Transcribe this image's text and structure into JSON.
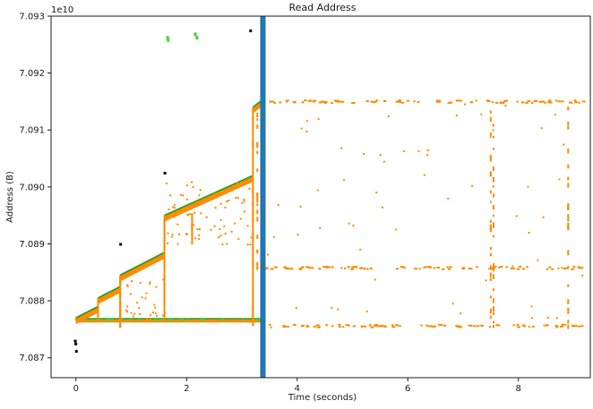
{
  "chart_data": {
    "type": "scatter",
    "title": "Read Address",
    "xlabel": "Time (seconds)",
    "ylabel": "Address (B)",
    "offset_label": "1e10",
    "xlim": [
      -0.45,
      9.3
    ],
    "ylim": [
      7.08665,
      7.093
    ],
    "x_ticks": [
      0,
      2,
      4,
      6,
      8
    ],
    "x_tick_labels": [
      "0",
      "2",
      "4",
      "6",
      "8"
    ],
    "y_ticks": [
      7.087,
      7.088,
      7.089,
      7.09,
      7.091,
      7.092,
      7.093
    ],
    "y_tick_labels": [
      "7.087",
      "7.088",
      "7.089",
      "7.090",
      "7.091",
      "7.092",
      "7.093"
    ],
    "grid": false,
    "colors": {
      "orange": "#ff8c00",
      "green": "#2ca02c",
      "bright_green": "#3ed43e",
      "black": "#000000",
      "marker_line": "#1f77b4"
    },
    "vertical_marker_x": 3.38,
    "stair_segments": [
      {
        "x0": 0.0,
        "x1": 0.4,
        "y0": 7.0877,
        "y1": 7.0879
      },
      {
        "x0": 0.4,
        "x1": 0.8,
        "y0": 7.08805,
        "y1": 7.08825
      },
      {
        "x0": 0.8,
        "x1": 1.6,
        "y0": 7.08845,
        "y1": 7.08885
      },
      {
        "x0": 1.6,
        "x1": 3.2,
        "y0": 7.0895,
        "y1": 7.0902
      },
      {
        "x0": 3.2,
        "x1": 3.4,
        "y0": 7.0914,
        "y1": 7.09155
      }
    ],
    "baseline_band": {
      "x0": 0.0,
      "x1": 3.4,
      "y": 7.08765
    },
    "horizontal_bands": [
      {
        "x0": 3.4,
        "x1": 9.2,
        "y": 7.09152
      },
      {
        "x0": 3.4,
        "x1": 9.2,
        "y": 7.0886
      },
      {
        "x0": 3.4,
        "x1": 9.2,
        "y": 7.08758
      }
    ],
    "vertical_bands": [
      {
        "x": 7.5,
        "y0": 7.08755,
        "y1": 7.09152
      },
      {
        "x": 7.55,
        "y0": 7.08755,
        "y1": 7.09152
      },
      {
        "x": 8.9,
        "y0": 7.08755,
        "y1": 7.09152
      },
      {
        "x": 0.8,
        "y0": 7.08755,
        "y1": 7.08845
      },
      {
        "x": 1.6,
        "y0": 7.08755,
        "y1": 7.0895
      },
      {
        "x": 2.1,
        "y0": 7.08905,
        "y1": 7.0896
      },
      {
        "x": 3.2,
        "y0": 7.08755,
        "y1": 7.0914
      },
      {
        "x": 3.28,
        "y0": 7.0886,
        "y1": 7.0914
      }
    ],
    "green_outliers": [
      {
        "x": 1.65,
        "y": 7.09262
      },
      {
        "x": 1.66,
        "y": 7.09258
      },
      {
        "x": 2.15,
        "y": 7.09268
      },
      {
        "x": 2.18,
        "y": 7.09262
      }
    ],
    "black_outliers": [
      {
        "x": -0.02,
        "y": 7.0873
      },
      {
        "x": -0.01,
        "y": 7.08725
      },
      {
        "x": 0.0,
        "y": 7.08712
      },
      {
        "x": 3.15,
        "y": 7.09275
      },
      {
        "x": 0.8,
        "y": 7.089
      },
      {
        "x": 1.6,
        "y": 7.09025
      }
    ]
  }
}
